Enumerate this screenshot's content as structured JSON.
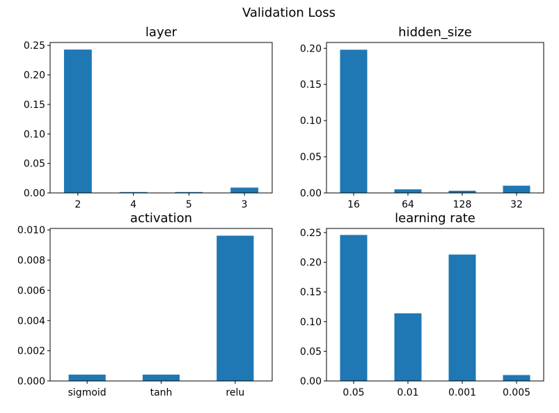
{
  "figure": {
    "suptitle": "Validation Loss"
  },
  "chart_data": [
    {
      "type": "bar",
      "title": "layer",
      "xlabel": "",
      "ylabel": "",
      "categories": [
        "2",
        "4",
        "5",
        "3"
      ],
      "values": [
        0.243,
        0.0015,
        0.0015,
        0.009
      ],
      "ylim": [
        0,
        0.255
      ],
      "yticks": [
        0.0,
        0.05,
        0.1,
        0.15,
        0.2,
        0.25
      ],
      "yticklabels": [
        "0.00",
        "0.05",
        "0.10",
        "0.15",
        "0.20",
        "0.25"
      ],
      "grid": false,
      "color": "#1f77b4"
    },
    {
      "type": "bar",
      "title": "hidden_size",
      "xlabel": "",
      "ylabel": "",
      "categories": [
        "16",
        "64",
        "128",
        "32"
      ],
      "values": [
        0.198,
        0.005,
        0.003,
        0.01
      ],
      "ylim": [
        0,
        0.208
      ],
      "yticks": [
        0.0,
        0.05,
        0.1,
        0.15,
        0.2
      ],
      "yticklabels": [
        "0.00",
        "0.05",
        "0.10",
        "0.15",
        "0.20"
      ],
      "grid": false,
      "color": "#1f77b4"
    },
    {
      "type": "bar",
      "title": "activation",
      "xlabel": "",
      "ylabel": "",
      "categories": [
        "sigmoid",
        "tanh",
        "relu"
      ],
      "values": [
        0.00042,
        0.00042,
        0.00962
      ],
      "ylim": [
        0,
        0.0101
      ],
      "yticks": [
        0.0,
        0.002,
        0.004,
        0.006,
        0.008,
        0.01
      ],
      "yticklabels": [
        "0.000",
        "0.002",
        "0.004",
        "0.006",
        "0.008",
        "0.010"
      ],
      "grid": false,
      "color": "#1f77b4"
    },
    {
      "type": "bar",
      "title": "learning rate",
      "xlabel": "",
      "ylabel": "",
      "categories": [
        "0.05",
        "0.01",
        "0.001",
        "0.005"
      ],
      "values": [
        0.246,
        0.114,
        0.213,
        0.01
      ],
      "ylim": [
        0,
        0.257
      ],
      "yticks": [
        0.0,
        0.05,
        0.1,
        0.15,
        0.2,
        0.25
      ],
      "yticklabels": [
        "0.00",
        "0.05",
        "0.10",
        "0.15",
        "0.20",
        "0.25"
      ],
      "grid": false,
      "color": "#1f77b4"
    }
  ]
}
